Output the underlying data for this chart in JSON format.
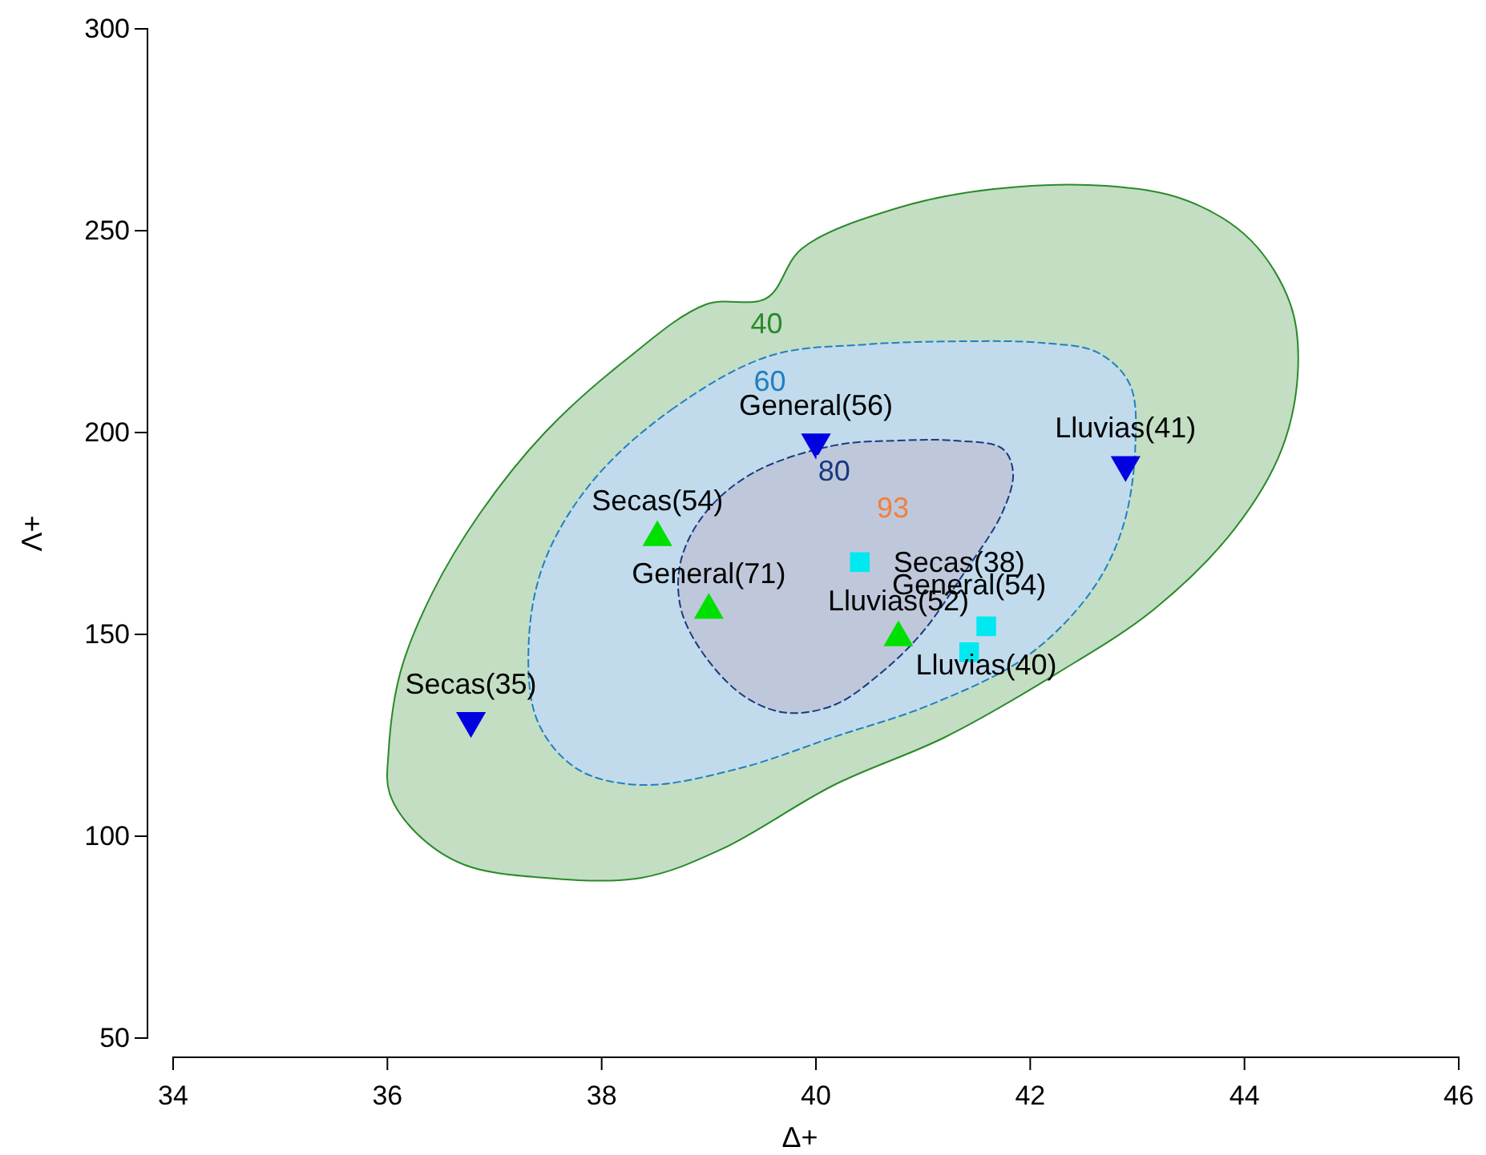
{
  "chart_data": {
    "type": "scatter",
    "xlabel": "Δ+",
    "ylabel": "Λ+",
    "xlim": [
      34,
      46
    ],
    "xticks": [
      34,
      36,
      38,
      40,
      42,
      44,
      46
    ],
    "ylim": [
      50,
      300
    ],
    "yticks": [
      50,
      100,
      150,
      200,
      250,
      300
    ],
    "series": [
      {
        "type": "area",
        "name": "40",
        "color": "#2a8a2a",
        "line_style": "solid",
        "x": [
          39.54,
          39.87,
          40.76,
          41.66,
          42.71,
          43.46,
          44.06,
          44.43,
          44.5,
          44.35,
          43.91,
          43.16,
          42.26,
          41.21,
          40.17,
          39.12,
          38.37,
          37.47,
          36.72,
          36.27,
          36.02,
          36.01,
          36.12,
          36.42,
          36.87,
          37.47,
          38.22,
          38.97
        ],
        "values": [
          233.3,
          245.6,
          255.6,
          260.3,
          261.1,
          257.5,
          247.6,
          231.7,
          215.9,
          196,
          176.2,
          156.3,
          140.5,
          124.6,
          112.7,
          96.8,
          89.7,
          89.7,
          92.9,
          100.8,
          110.7,
          120.6,
          140.5,
          160.3,
          180.2,
          200,
          217.9,
          231.7
        ]
      },
      {
        "type": "area",
        "name": "60",
        "color": "#2080c0",
        "line_style": "dashed",
        "x": [
          39.57,
          38.67,
          37.92,
          37.47,
          37.32,
          37.4,
          37.77,
          38.37,
          39.27,
          40.17,
          41.06,
          41.96,
          42.56,
          42.86,
          42.98,
          42.93,
          42.63,
          42.11,
          41.36,
          40.46
        ],
        "values": [
          219,
          206,
          188.1,
          168.3,
          148.4,
          128.6,
          116.7,
          112.7,
          116.7,
          124.6,
          132.5,
          144.4,
          160.3,
          176.2,
          196,
          211.9,
          219.8,
          222.2,
          222.6,
          221.8
        ]
      },
      {
        "type": "area",
        "name": "80",
        "color": "#1a3a80",
        "line_style": "dashed",
        "x": [
          40.17,
          39.42,
          38.97,
          38.74,
          38.74,
          38.97,
          39.34,
          39.72,
          40.17,
          40.61,
          40.99,
          41.36,
          41.74,
          41.84,
          41.74,
          41.29,
          40.76
        ],
        "values": [
          196.8,
          190.1,
          180.2,
          168.3,
          156.3,
          144.4,
          134.5,
          130.6,
          132.5,
          140.5,
          150.4,
          164.3,
          180.2,
          190.1,
          196,
          198,
          198
        ]
      },
      {
        "type": "scatter",
        "marker": "triangle-down",
        "color": "#0000e0",
        "x": [
          36.78,
          40.0,
          42.89
        ],
        "values": [
          128.6,
          197.6,
          192
        ]
      },
      {
        "type": "scatter",
        "marker": "triangle",
        "color": "#00e000",
        "x": [
          38.52,
          39.0,
          40.77
        ],
        "values": [
          174,
          156,
          149.2
        ]
      },
      {
        "type": "scatter",
        "marker": "square",
        "color": "#00e8f0",
        "x": [
          40.41,
          41.59,
          41.43
        ],
        "values": [
          167.9,
          152,
          145.6
        ]
      }
    ],
    "annotations": [
      "93",
      {
        "text": "Secas(35)",
        "x": 36.78,
        "y": 128.6
      },
      {
        "text": "General(56)",
        "x": 40.0,
        "y": 197.6
      },
      {
        "text": "Lluvias(41)",
        "x": 42.89,
        "y": 192
      },
      {
        "text": "Secas(54)",
        "x": 38.52,
        "y": 174
      },
      {
        "text": "General(71)",
        "x": 39.0,
        "y": 156
      },
      {
        "text": "Lluvias(52)",
        "x": 40.77,
        "y": 149.2
      },
      {
        "text": "Secas(38)",
        "x": 40.41,
        "y": 167.9
      },
      {
        "text": "Lluvias(40)",
        "x": 41.59,
        "y": 152
      },
      {
        "text": "General(54)",
        "x": 41.43,
        "y": 145.6
      }
    ]
  }
}
